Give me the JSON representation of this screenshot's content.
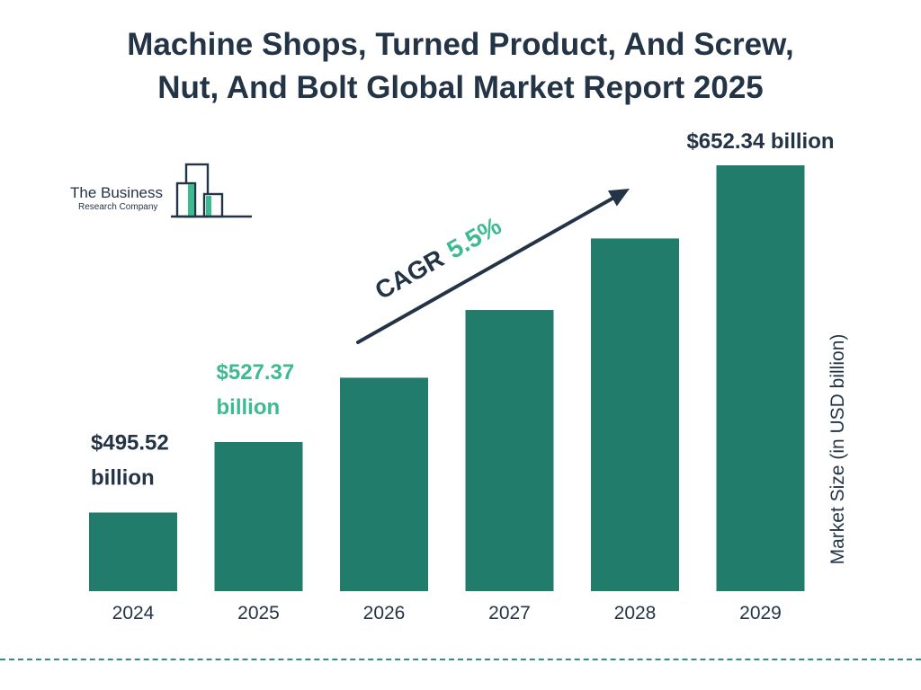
{
  "header": {
    "title_line1": "Machine Shops, Turned Product, And Screw,",
    "title_line2": "Nut, And Bolt Global Market Report 2025"
  },
  "logo": {
    "line1": "The Business",
    "line2": "Research Company"
  },
  "colors": {
    "bar": "#217c6c",
    "text_dark": "#243447",
    "highlight": "#3dba8f",
    "divider": "#2f8f83"
  },
  "chart_data": {
    "type": "bar",
    "title": "Machine Shops, Turned Product, And Screw, Nut, And Bolt Global Market Report 2025",
    "xlabel": "",
    "ylabel": "Market Size (in USD billion)",
    "categories": [
      "2024",
      "2025",
      "2026",
      "2027",
      "2028",
      "2029"
    ],
    "values": [
      495.52,
      527.37,
      556.4,
      587.0,
      619.3,
      652.34
    ],
    "ylim": [
      460,
      660
    ],
    "grid": false,
    "legend": "none",
    "data_labels": [
      {
        "index": 0,
        "line1": "$495.52",
        "line2": "billion",
        "highlight": false
      },
      {
        "index": 1,
        "line1": "$527.37",
        "line2": "billion",
        "highlight": true
      },
      {
        "index": 5,
        "line1": "$652.34 billion",
        "line2": "",
        "highlight": false
      }
    ],
    "annotation": {
      "label": "CAGR",
      "value": "5.5%"
    }
  }
}
